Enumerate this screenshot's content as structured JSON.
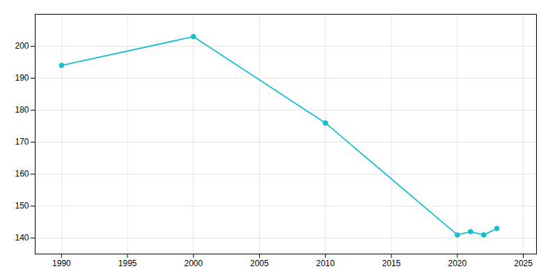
{
  "chart_data": {
    "type": "line",
    "x": [
      1990,
      2000,
      2010,
      2020,
      2021,
      2022,
      2023
    ],
    "values": [
      194,
      203,
      176,
      141,
      142,
      141,
      143
    ],
    "color": "#17BECF",
    "marker": "circle",
    "line_style": "solid",
    "xlim": [
      1988,
      2026
    ],
    "xticks": [
      1990,
      1995,
      2000,
      2005,
      2010,
      2015,
      2020,
      2025
    ],
    "ylim": [
      135,
      210
    ],
    "yticks": [
      140,
      150,
      160,
      170,
      180,
      190,
      200
    ],
    "grid": true
  }
}
